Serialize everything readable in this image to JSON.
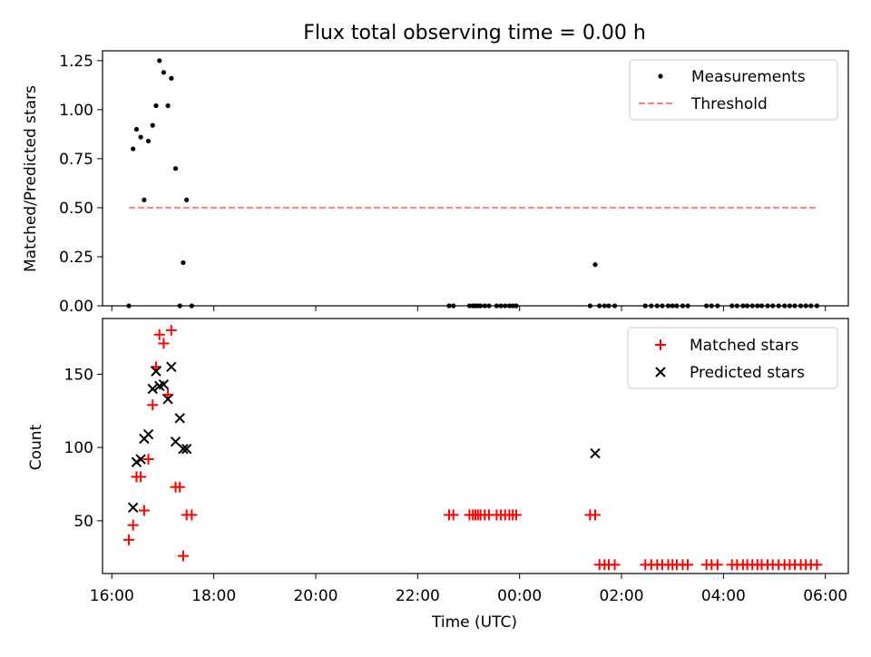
{
  "chart_data": [
    {
      "type": "scatter",
      "title": "Flux total observing time = 0.00 h",
      "xlabel": "",
      "ylabel": "Matched/Predicted stars",
      "xlim": [
        "15:49",
        "06:27"
      ],
      "ylim": [
        0,
        1.3
      ],
      "x_ticks": [
        "16:00",
        "18:00",
        "20:00",
        "22:00",
        "00:00",
        "02:00",
        "04:00",
        "06:00"
      ],
      "y_ticks": [
        "0.00",
        "0.25",
        "0.50",
        "0.75",
        "1.00",
        "1.25"
      ],
      "legend": {
        "position": "top-right",
        "entries": [
          "Measurements",
          "Threshold"
        ]
      },
      "series": [
        {
          "name": "Measurements",
          "marker": "dot",
          "color": "#000000",
          "x": [
            "16:20",
            "16:25",
            "16:29",
            "16:34",
            "16:38",
            "16:43",
            "16:48",
            "16:52",
            "16:56",
            "17:01",
            "17:06",
            "17:10",
            "17:15",
            "17:20",
            "17:24",
            "17:28",
            "17:34",
            "22:37",
            "22:42",
            "23:01",
            "23:05",
            "23:08",
            "23:11",
            "23:14",
            "23:19",
            "23:24",
            "23:33",
            "23:38",
            "23:43",
            "23:48",
            "23:52",
            "23:56",
            "01:23",
            "01:29",
            "01:34",
            "01:40",
            "01:45",
            "01:52",
            "02:28",
            "02:35",
            "02:42",
            "02:48",
            "02:55",
            "03:00",
            "03:05",
            "03:12",
            "03:18",
            "03:40",
            "03:46",
            "03:53",
            "04:10",
            "04:16",
            "04:23",
            "04:28",
            "04:34",
            "04:40",
            "04:45",
            "04:52",
            "04:58",
            "05:05",
            "05:12",
            "05:18",
            "05:24",
            "05:31",
            "05:37",
            "05:43",
            "05:50"
          ],
          "y": [
            0.0,
            0.8,
            0.9,
            0.86,
            0.54,
            0.84,
            0.92,
            1.02,
            1.25,
            1.19,
            1.02,
            1.16,
            0.7,
            0.0,
            0.22,
            0.54,
            0.0,
            0,
            0,
            0,
            0,
            0,
            0,
            0,
            0,
            0,
            0,
            0,
            0,
            0,
            0,
            0,
            0,
            0.21,
            0,
            0,
            0,
            0,
            0,
            0,
            0,
            0,
            0,
            0,
            0,
            0,
            0,
            0,
            0,
            0,
            0,
            0,
            0,
            0,
            0,
            0,
            0,
            0,
            0,
            0,
            0,
            0,
            0,
            0,
            0,
            0,
            0
          ]
        },
        {
          "name": "Threshold",
          "style": "dashed",
          "color": "#ff7f7f",
          "x": [
            "16:20",
            "05:50"
          ],
          "y": [
            0.5,
            0.5
          ]
        }
      ]
    },
    {
      "type": "scatter",
      "title": "",
      "xlabel": "Time (UTC)",
      "ylabel": "Count",
      "xlim": [
        "15:49",
        "06:27"
      ],
      "ylim": [
        14,
        188
      ],
      "x_ticks": [
        "16:00",
        "18:00",
        "20:00",
        "22:00",
        "00:00",
        "02:00",
        "04:00",
        "06:00"
      ],
      "y_ticks": [
        "50",
        "100",
        "150"
      ],
      "legend": {
        "position": "top-right",
        "entries": [
          "Matched stars",
          "Predicted stars"
        ]
      },
      "series": [
        {
          "name": "Matched stars",
          "marker": "plus",
          "color": "#ff0000",
          "x": [
            "16:20",
            "16:25",
            "16:29",
            "16:34",
            "16:38",
            "16:43",
            "16:48",
            "16:52",
            "16:56",
            "17:01",
            "17:06",
            "17:10",
            "17:15",
            "17:20",
            "17:24",
            "17:28",
            "17:34",
            "22:37",
            "22:42",
            "23:01",
            "23:05",
            "23:08",
            "23:11",
            "23:14",
            "23:19",
            "23:24",
            "23:33",
            "23:38",
            "23:43",
            "23:48",
            "23:52",
            "23:56",
            "01:23",
            "01:29",
            "01:34",
            "01:40",
            "01:45",
            "01:52",
            "02:28",
            "02:35",
            "02:42",
            "02:48",
            "02:55",
            "03:00",
            "03:05",
            "03:12",
            "03:18",
            "03:40",
            "03:46",
            "03:53",
            "04:10",
            "04:16",
            "04:23",
            "04:28",
            "04:34",
            "04:40",
            "04:45",
            "04:52",
            "04:58",
            "05:05",
            "05:12",
            "05:18",
            "05:24",
            "05:31",
            "05:37",
            "05:43",
            "05:50"
          ],
          "y": [
            37,
            47,
            80,
            80,
            57,
            92,
            129,
            155,
            177,
            171,
            136,
            180,
            73,
            73,
            26,
            54,
            54,
            54,
            54,
            54,
            54,
            54,
            54,
            54,
            54,
            54,
            54,
            54,
            54,
            54,
            54,
            54,
            54,
            54,
            20,
            20,
            20,
            20,
            20,
            20,
            20,
            20,
            20,
            20,
            20,
            20,
            20,
            20,
            20,
            20,
            20,
            20,
            20,
            20,
            20,
            20,
            20,
            20,
            20,
            20,
            20,
            20,
            20,
            20,
            20,
            20,
            20
          ]
        },
        {
          "name": "Predicted stars",
          "marker": "x",
          "color": "#000000",
          "x": [
            "16:25",
            "16:29",
            "16:34",
            "16:38",
            "16:43",
            "16:48",
            "16:52",
            "16:56",
            "17:01",
            "17:06",
            "17:10",
            "17:15",
            "17:20",
            "17:24",
            "17:28",
            "01:29"
          ],
          "y": [
            59,
            90,
            92,
            106,
            109,
            140,
            152,
            142,
            143,
            133,
            155,
            104,
            120,
            99,
            99,
            96
          ]
        }
      ]
    }
  ]
}
